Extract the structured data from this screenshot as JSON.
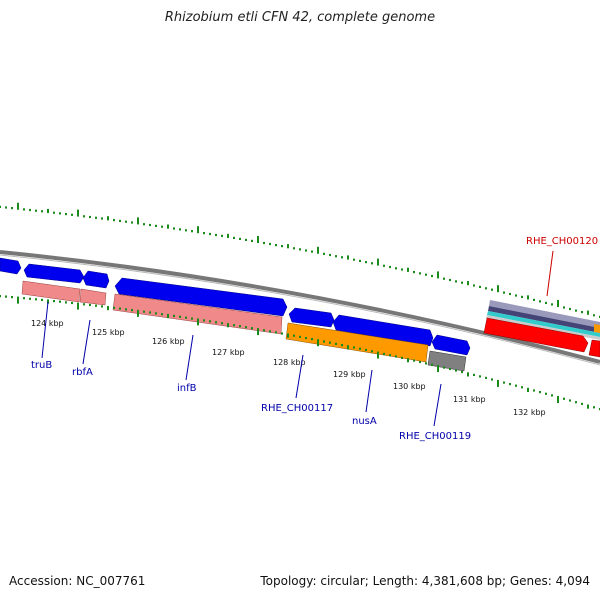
{
  "title": "Rhizobium etli CFN 42, complete genome",
  "footer": {
    "accession": "Accession: NC_007761",
    "summary": "Topology: circular; Length: 4,381,608 bp; Genes: 4,094"
  },
  "colors": {
    "forward_gene": "#0000ee",
    "reverse_gene": "#f08a8a",
    "orange_gene": "#ff9900",
    "gray_gene": "#808080",
    "red_gene": "#ff0000",
    "label_blue": "#0000aa",
    "label_red": "#cc0000",
    "tick_green": "#1a8a1a",
    "backbone": "#888888"
  },
  "ruler": {
    "labels": [
      "124 kbp",
      "125 kbp",
      "126 kbp",
      "127 kbp",
      "128 kbp",
      "129 kbp",
      "130 kbp",
      "131 kbp",
      "132 kbp"
    ]
  },
  "gene_labels": [
    {
      "text": "truB",
      "color": "blue"
    },
    {
      "text": "rbfA",
      "color": "blue"
    },
    {
      "text": "infB",
      "color": "blue"
    },
    {
      "text": "RHE_CH00117",
      "color": "blue"
    },
    {
      "text": "nusA",
      "color": "blue"
    },
    {
      "text": "RHE_CH00119",
      "color": "blue"
    },
    {
      "text": "RHE_CH00120",
      "color": "red"
    }
  ]
}
